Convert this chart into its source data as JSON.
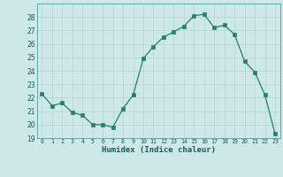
{
  "x": [
    0,
    1,
    2,
    3,
    4,
    5,
    6,
    7,
    8,
    9,
    10,
    11,
    12,
    13,
    14,
    15,
    16,
    17,
    18,
    19,
    20,
    21,
    22,
    23
  ],
  "y": [
    22.3,
    21.4,
    21.6,
    20.9,
    20.7,
    20.0,
    20.0,
    19.8,
    21.2,
    22.2,
    24.9,
    25.8,
    26.5,
    26.9,
    27.3,
    28.1,
    28.2,
    27.2,
    27.4,
    26.7,
    24.7,
    23.9,
    22.2,
    19.3
  ],
  "xlabel": "Humidex (Indice chaleur)",
  "xlim": [
    -0.5,
    23.5
  ],
  "ylim": [
    19,
    29
  ],
  "yticks": [
    19,
    20,
    21,
    22,
    23,
    24,
    25,
    26,
    27,
    28
  ],
  "xticks": [
    0,
    1,
    2,
    3,
    4,
    5,
    6,
    7,
    8,
    9,
    10,
    11,
    12,
    13,
    14,
    15,
    16,
    17,
    18,
    19,
    20,
    21,
    22,
    23
  ],
  "line_color": "#2a7d6e",
  "marker_color": "#2a7d6e",
  "bg_color": "#cce8e8",
  "grid_major_color": "#b8d8d8",
  "grid_minor_color": "#d4e8e8",
  "font_color": "#1a5a5a"
}
